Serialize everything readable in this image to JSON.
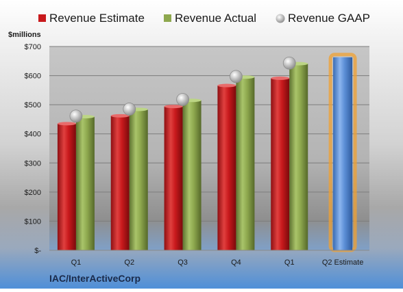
{
  "legend": [
    {
      "label": "Revenue Estimate",
      "color": "#c8191c"
    },
    {
      "label": "Revenue Actual",
      "color": "#8ea84e"
    },
    {
      "label": "Revenue GAAP",
      "color": "#b8b8b8"
    }
  ],
  "company": "IAC/InterActiveCorp",
  "chart_data": {
    "type": "bar",
    "ylabel": "$millions",
    "ylim": [
      0,
      700
    ],
    "yticks": [
      {
        "value": 0,
        "label": "$-"
      },
      {
        "value": 100,
        "label": "$100"
      },
      {
        "value": 200,
        "label": "$200"
      },
      {
        "value": 300,
        "label": "$300"
      },
      {
        "value": 400,
        "label": "$400"
      },
      {
        "value": 500,
        "label": "$500"
      },
      {
        "value": 600,
        "label": "$600"
      },
      {
        "value": 700,
        "label": "$700"
      }
    ],
    "categories": [
      "Q1",
      "Q2",
      "Q3",
      "Q4",
      "Q1",
      "Q2 Estimate"
    ],
    "series": [
      {
        "name": "Revenue Estimate",
        "values": [
          435,
          462,
          494,
          566,
          591,
          null
        ]
      },
      {
        "name": "Revenue Actual",
        "values": [
          459,
          484,
          515,
          595,
          641,
          null
        ]
      },
      {
        "name": "Revenue GAAP",
        "values": [
          461,
          485,
          518,
          597,
          643,
          null
        ]
      }
    ],
    "estimate": {
      "category": "Q2 Estimate",
      "value": 663,
      "color": "#5b8ed6",
      "highlight": "#f0a030"
    },
    "grid": true,
    "legend_position": "top"
  }
}
